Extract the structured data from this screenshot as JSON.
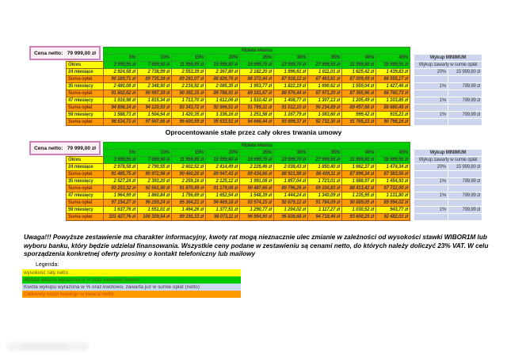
{
  "colors": {
    "green": "#00cc00",
    "yellow": "#ffff00",
    "orange": "#ff9900",
    "lavender": "#ccd4ee"
  },
  "price": {
    "label": "Cena netto:",
    "value": "79 999,00 zł"
  },
  "header": {
    "group_label": "Wpłata własna",
    "percents": [
      "5%",
      "10%",
      "15%",
      "20%",
      "25%",
      "30%",
      "35%",
      "40%",
      "45%"
    ]
  },
  "row_labels": [
    "Okres",
    "24 miesiące",
    "Suma opłat",
    "35 miesięcy",
    "Suma opłat",
    "47 miesięcy",
    "Suma opłat",
    "59 miesięcy",
    "Suma opłat"
  ],
  "wykup": {
    "title": "Wykup MINIMUM",
    "subtitle": "Wykup zawarty w sumie opłat",
    "rows": [
      [
        "20%",
        "15 999,80 zł"
      ],
      [
        "",
        ""
      ],
      [
        "1%",
        "799,99 zł"
      ],
      [
        "",
        ""
      ],
      [
        "1%",
        "799,99 zł"
      ],
      [
        "",
        ""
      ],
      [
        "1%",
        "799,99 zł"
      ],
      [
        "",
        ""
      ]
    ]
  },
  "section_title": "Oprocentowanie stałe przez cały okres trwania umowy",
  "tables": [
    {
      "rows": [
        [
          "3 999,95 zł",
          "7 999,90 zł",
          "11 999,85 zł",
          "15 999,80 zł",
          "19 999,75 zł",
          "23 999,70 zł",
          "27 999,65 zł",
          "31 999,60 zł",
          "35 999,55 zł"
        ],
        [
          "2 924,58 zł",
          "2 738,99 zł",
          "2 553,39 zł",
          "2 367,80 zł",
          "2 182,20 zł",
          "1 996,61 zł",
          "1 811,01 zł",
          "1 625,42 zł",
          "1 439,83 zł"
        ],
        [
          "90 189,71 zł",
          "89 735,39 zł",
          "89 281,07 zł",
          "88 826,76 zł",
          "88 372,44 zł",
          "87 918,12 zł",
          "87 463,81 zł",
          "87 009,49 zł",
          "86 555,17 zł"
        ],
        [
          "2 480,08 zł",
          "2 348,50 zł",
          "2 216,92 zł",
          "2 085,35 zł",
          "1 953,77 zł",
          "1 822,19 zł",
          "1 690,62 zł",
          "1 559,04 zł",
          "1 427,46 zł"
        ],
        [
          "91 602,62 zł",
          "90 997,39 zł",
          "90 392,15 zł",
          "89 786,91 zł",
          "89 181,67 zł",
          "88 576,44 zł",
          "87 971,20 zł",
          "87 365,96 zł",
          "86 760,73 zł"
        ],
        [
          "1 916,98 zł",
          "1 815,34 zł",
          "1 713,70 zł",
          "1 612,06 zł",
          "1 510,42 zł",
          "1 408,77 zł",
          "1 307,13 zł",
          "1 205,49 zł",
          "1 103,85 zł"
        ],
        [
          "94 898,14 zł",
          "94 120,93 zł",
          "93 343,72 zł",
          "92 566,51 zł",
          "91 789,31 zł",
          "91 012,10 zł",
          "90 234,89 zł",
          "89 457,68 zł",
          "88 680,48 zł"
        ],
        [
          "1 588,73 zł",
          "1 504,54 zł",
          "1 420,35 zł",
          "1 336,16 zł",
          "1 251,98 zł",
          "1 167,79 zł",
          "1 083,60 zł",
          "999,42 zł",
          "915,23 zł"
        ],
        [
          "98 534,73 zł",
          "97 567,66 zł",
          "96 600,59 zł",
          "95 633,51 zł",
          "94 666,44 zł",
          "93 699,37 zł",
          "92 732,30 zł",
          "91 765,23 zł",
          "90 798,16 zł"
        ]
      ]
    },
    {
      "rows": [
        [
          "3 999,95 zł",
          "7 999,90 zł",
          "11 999,85 zł",
          "15 999,80 zł",
          "19 999,75 zł",
          "23 999,70 zł",
          "27 999,65 zł",
          "31 999,60 zł",
          "35 999,55 zł"
        ],
        [
          "2 978,58 zł",
          "2 790,55 zł",
          "2 602,52 zł",
          "2 414,49 zł",
          "2 226,46 zł",
          "2 038,43 zł",
          "1 850,40 zł",
          "1 662,37 zł",
          "1 474,34 zł"
        ],
        [
          "91 485,75 zł",
          "90 972,98 zł",
          "90 460,20 zł",
          "89 947,43 zł",
          "89 434,66 zł",
          "88 921,88 zł",
          "88 409,11 zł",
          "87 896,34 zł",
          "87 383,56 zł"
        ],
        [
          "2 527,24 zł",
          "2 393,20 zł",
          "2 259,16 zł",
          "2 125,12 zł",
          "1 991,08 zł",
          "1 857,04 zł",
          "1 723,01 zł",
          "1 588,97 zł",
          "1 454,93 zł"
        ],
        [
          "93 253,32 zł",
          "92 561,90 zł",
          "91 870,49 zł",
          "91 179,08 zł",
          "90 487,66 zł",
          "89 796,25 zł",
          "89 104,83 zł",
          "88 413,42 zł",
          "87 722,00 zł"
        ],
        [
          "1 964,99 zł",
          "1 860,84 zł",
          "1 756,69 zł",
          "1 652,54 zł",
          "1 548,39 zł",
          "1 444,24 zł",
          "1 340,09 zł",
          "1 235,95 zł",
          "1 131,80 zł"
        ],
        [
          "97 154,27 zł",
          "96 259,24 zł",
          "95 364,21 zł",
          "94 469,18 zł",
          "93 574,15 zł",
          "92 679,12 zł",
          "91 784,09 zł",
          "90 889,05 zł",
          "89 994,02 zł"
        ],
        [
          "1 637,76 zł",
          "1 551,01 zł",
          "1 464,26 zł",
          "1 377,51 zł",
          "1 290,77 zł",
          "1 204,02 zł",
          "1 117,27 zł",
          "1 030,52 zł",
          "943,77 zł"
        ],
        [
          "101 427,76 zł",
          "100 309,54 zł",
          "99 191,33 zł",
          "98 073,11 zł",
          "96 954,90 zł",
          "95 836,68 zł",
          "94 718,46 zł",
          "93 600,25 zł",
          "92 482,03 zł"
        ]
      ]
    }
  ],
  "warning": "Uwaga!!! Powyższe zestawienie ma charakter informacyjny, kwoty rat mogą nieznacznie ulec zmianie w zależności od wysokości stawki WIBOR1M lub wyboru banku, który będzie udzielał finansowania. Wszystkie ceny podane w zestawieniu są cenami netto, do których należy doliczyć 23% VAT. W celu sporządzenia konkretnej oferty prosimy o kontakt telefoniczny lub mailowy",
  "legend": {
    "title": "Legenda:",
    "items": [
      {
        "label": "wysokość raty netto",
        "color": "#ffff00"
      },
      {
        "label": "Wpłata własna wyrażona w % oraz kwotowo (netto)",
        "color": "#00cc00"
      },
      {
        "label": "Kwota wykupu wyrażona w % oraz kwotowo, zawarta już w sumie opłat (netto)",
        "color": "#ccd9f5"
      },
      {
        "label": "Całkowity koszt leasingu w kwocie netto",
        "color": "#ff9900"
      }
    ]
  }
}
